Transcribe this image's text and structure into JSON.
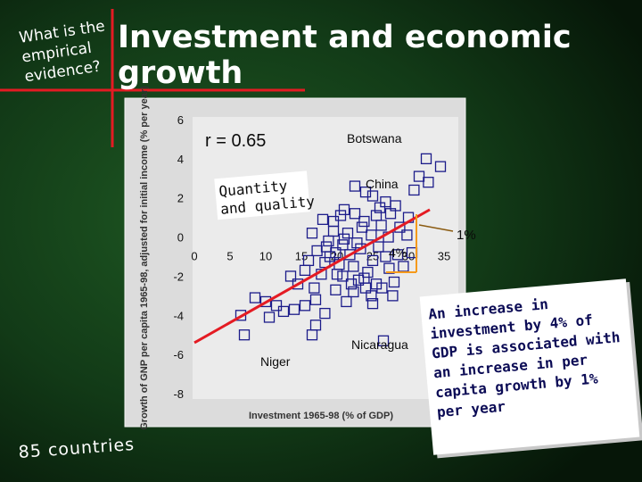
{
  "slide": {
    "subtitle": "What is the empirical evidence?",
    "title": "Investment and economic growth",
    "countries_note": "85 countries",
    "callout": "An increase in investment by 4% of GDP is associated with an increase in per capita growth by 1% per year",
    "colors": {
      "background": "#0c2a12",
      "accent_line": "#e41b23",
      "point": "#1c1c8a",
      "text": "#ffffff"
    }
  },
  "chart_data": {
    "type": "scatter",
    "xlabel": "Investment 1965-98 (% of GDP)",
    "ylabel": "Growth of GNP per capita 1965-98, adjusted for initial income (% per year)",
    "xlim": [
      0,
      35
    ],
    "ylim": [
      -8,
      6
    ],
    "x_ticks": [
      0,
      5,
      10,
      15,
      20,
      25,
      30,
      35
    ],
    "y_ticks": [
      -8,
      -6,
      -4,
      -2,
      0,
      2,
      4,
      6
    ],
    "grid": false,
    "trend_line": {
      "x": [
        0,
        33
      ],
      "y": [
        -5.4,
        1.4
      ]
    },
    "annotations": [
      {
        "text": "r = 0.65"
      },
      {
        "text": "Botswana"
      },
      {
        "text": "China"
      },
      {
        "text": "Quantity and quality"
      },
      {
        "text": "Niger"
      },
      {
        "text": "Nicaragua"
      },
      {
        "text": "4%"
      },
      {
        "text": "1%"
      }
    ],
    "points": [
      [
        32.5,
        4.0
      ],
      [
        34.5,
        3.6
      ],
      [
        31.5,
        3.1
      ],
      [
        32.8,
        2.8
      ],
      [
        30.8,
        2.4
      ],
      [
        22.5,
        2.6
      ],
      [
        24.0,
        2.3
      ],
      [
        25.0,
        2.1
      ],
      [
        26.8,
        1.8
      ],
      [
        28.2,
        1.6
      ],
      [
        21.0,
        1.4
      ],
      [
        22.5,
        1.2
      ],
      [
        20.5,
        1.1
      ],
      [
        25.5,
        1.1
      ],
      [
        27.5,
        1.2
      ],
      [
        30.0,
        1.0
      ],
      [
        18.0,
        0.9
      ],
      [
        19.5,
        0.8
      ],
      [
        23.8,
        0.8
      ],
      [
        26.2,
        0.6
      ],
      [
        28.8,
        0.5
      ],
      [
        16.5,
        0.2
      ],
      [
        19.5,
        0.3
      ],
      [
        21.5,
        0.2
      ],
      [
        24.8,
        0.1
      ],
      [
        27.2,
        0.0
      ],
      [
        29.8,
        0.1
      ],
      [
        18.8,
        -0.2
      ],
      [
        20.8,
        -0.4
      ],
      [
        22.8,
        -0.3
      ],
      [
        25.8,
        -0.5
      ],
      [
        17.2,
        -0.7
      ],
      [
        19.8,
        -0.8
      ],
      [
        21.8,
        -0.9
      ],
      [
        23.3,
        -0.6
      ],
      [
        26.8,
        -1.0
      ],
      [
        18.3,
        -1.3
      ],
      [
        20.3,
        -1.4
      ],
      [
        22.3,
        -1.5
      ],
      [
        24.3,
        -1.8
      ],
      [
        27.3,
        -1.6
      ],
      [
        29.3,
        -1.5
      ],
      [
        15.5,
        -1.7
      ],
      [
        17.8,
        -1.9
      ],
      [
        20.8,
        -2.0
      ],
      [
        23.8,
        -2.1
      ],
      [
        25.5,
        -2.4
      ],
      [
        26.3,
        -2.6
      ],
      [
        28.0,
        -2.3
      ],
      [
        13.5,
        -2.0
      ],
      [
        14.5,
        -2.4
      ],
      [
        16.8,
        -2.6
      ],
      [
        19.8,
        -2.7
      ],
      [
        22.3,
        -2.8
      ],
      [
        24.8,
        -3.0
      ],
      [
        27.8,
        -3.0
      ],
      [
        8.5,
        -3.1
      ],
      [
        10.0,
        -3.3
      ],
      [
        11.5,
        -3.5
      ],
      [
        12.5,
        -3.8
      ],
      [
        15.5,
        -3.5
      ],
      [
        18.3,
        -3.9
      ],
      [
        21.3,
        -3.3
      ],
      [
        6.5,
        -4.0
      ],
      [
        10.5,
        -4.1
      ],
      [
        14.0,
        -3.7
      ],
      [
        17.0,
        -3.2
      ],
      [
        23.0,
        -2.2
      ],
      [
        24.0,
        -2.6
      ],
      [
        25.0,
        -1.2
      ],
      [
        21.0,
        -0.1
      ],
      [
        23.5,
        0.5
      ],
      [
        26.0,
        1.5
      ],
      [
        19.0,
        -1.0
      ],
      [
        20.0,
        -1.9
      ],
      [
        22.0,
        -2.4
      ],
      [
        16.0,
        -1.2
      ],
      [
        18.5,
        -0.5
      ],
      [
        25.0,
        -3.4
      ],
      [
        28.5,
        -0.9
      ],
      [
        30.5,
        -0.8
      ],
      [
        7.0,
        -5.0
      ],
      [
        16.5,
        -5.0
      ],
      [
        26.5,
        -5.3
      ],
      [
        17.0,
        -4.5
      ]
    ]
  }
}
